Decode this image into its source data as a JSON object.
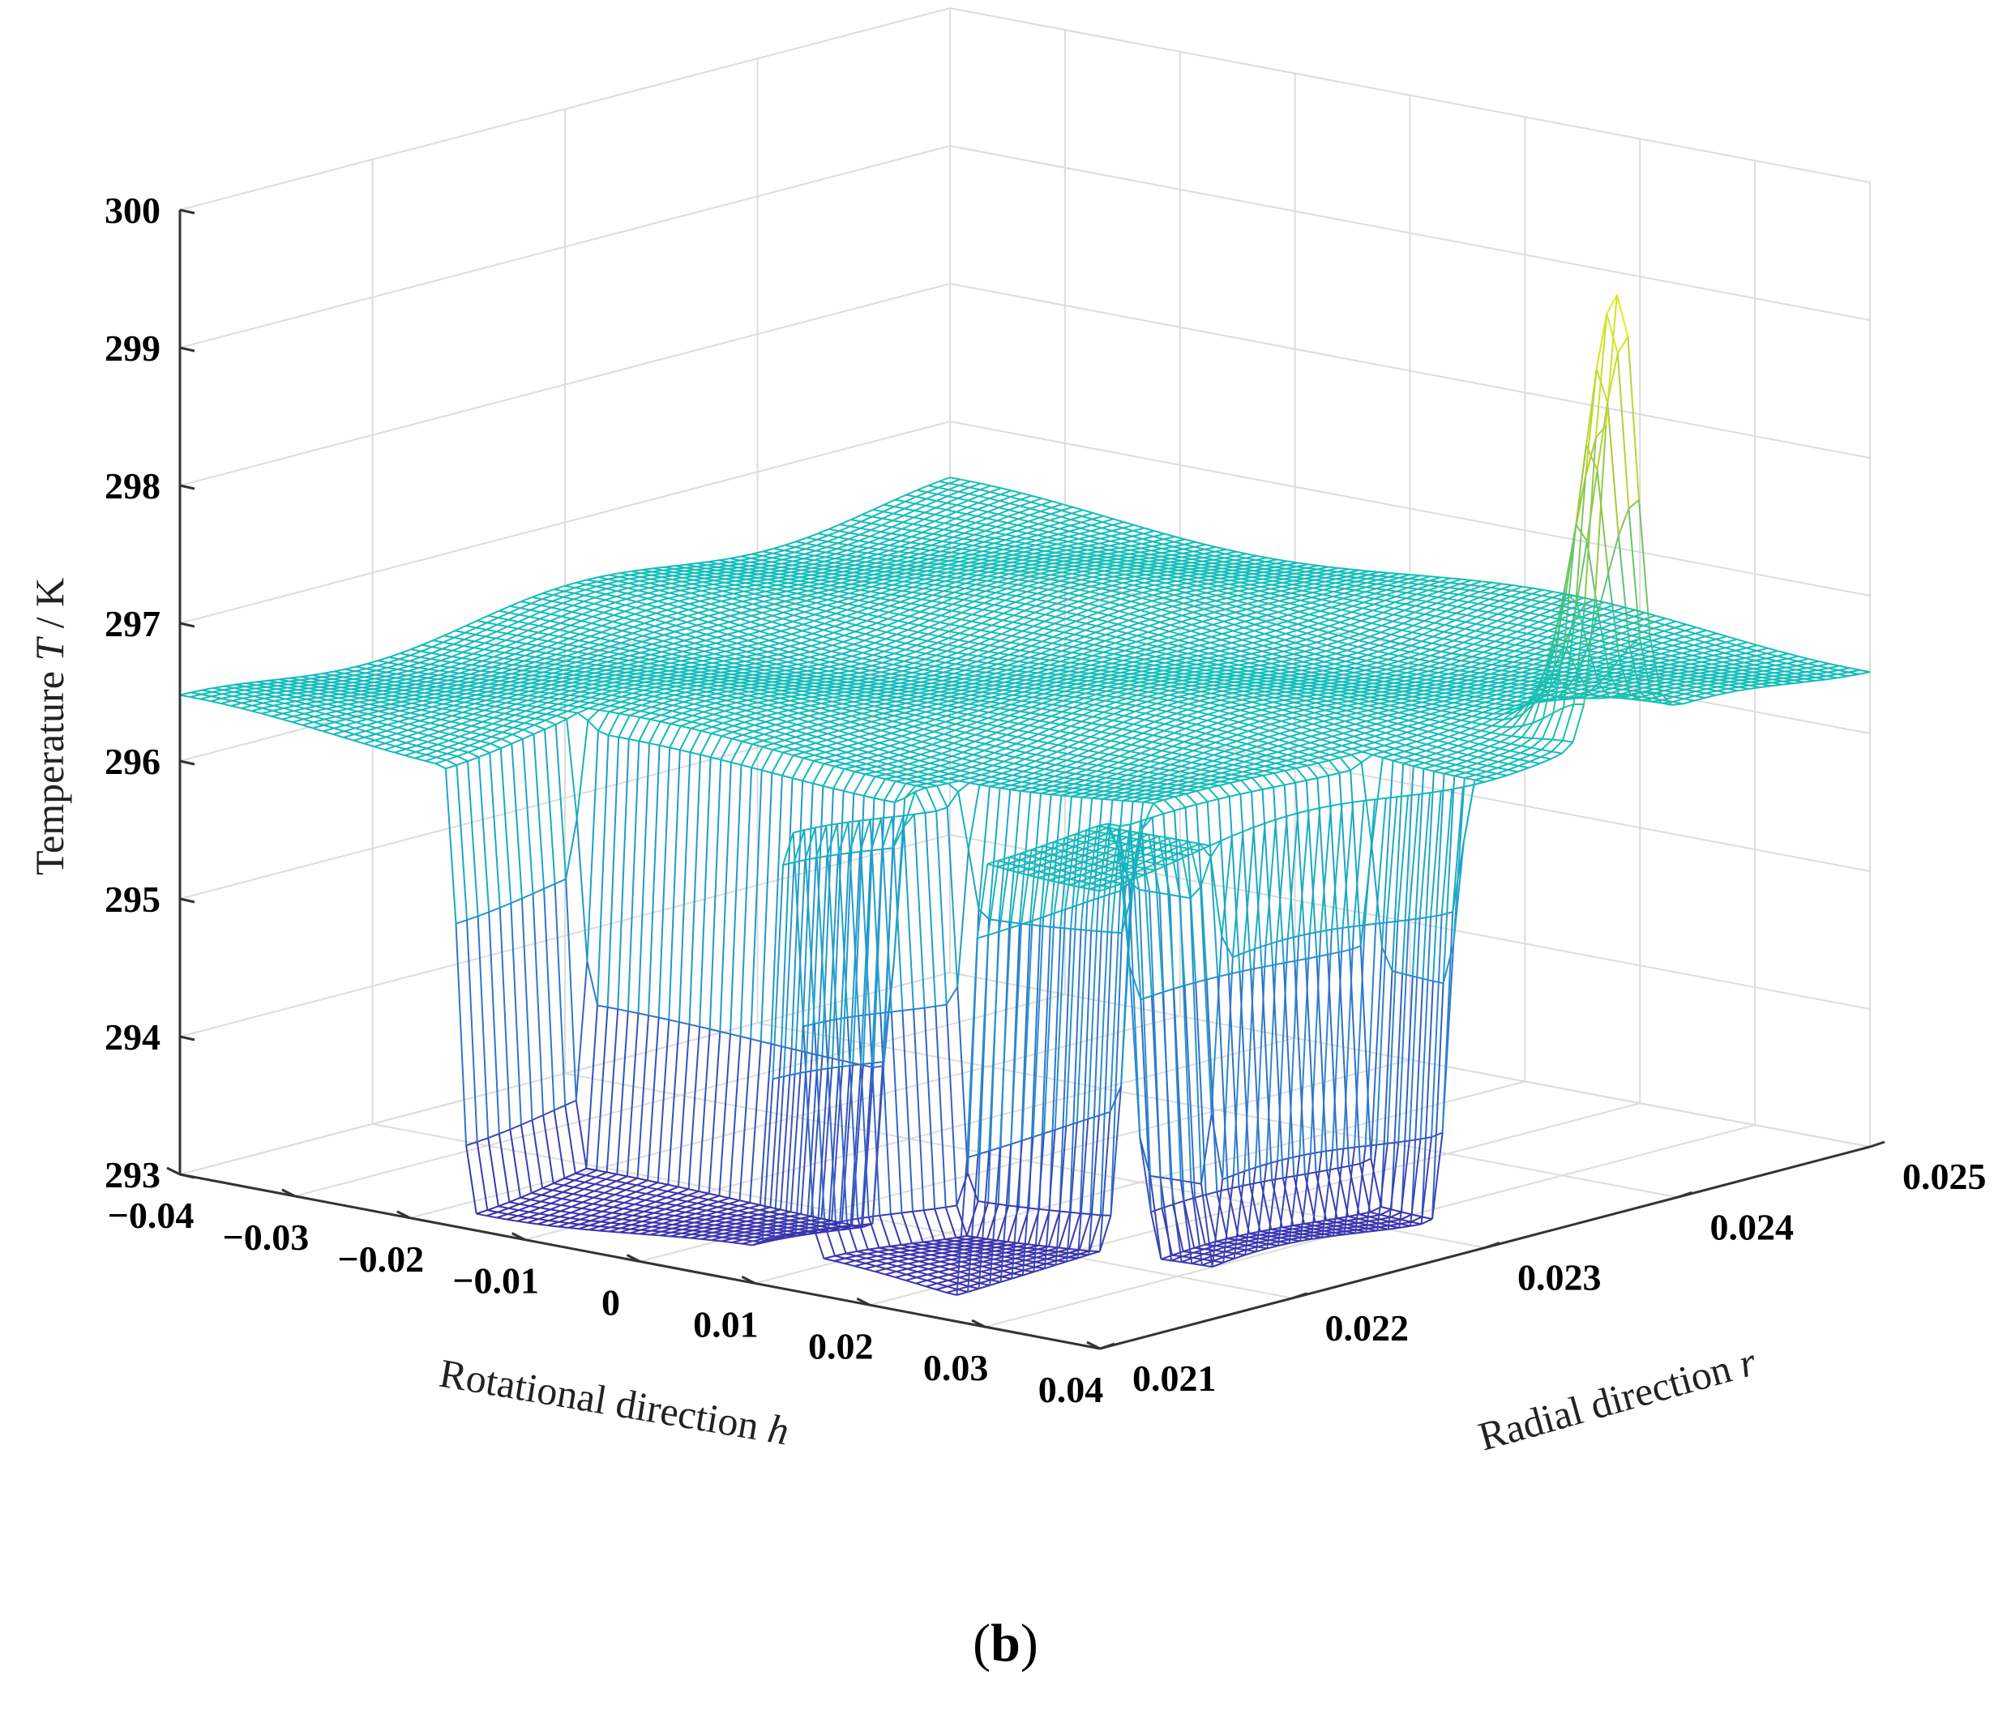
{
  "chart_data": {
    "type": "surface",
    "z_axis": {
      "label_text": "Temperature",
      "label_var": "T",
      "label_unit": "/ K",
      "range": [
        293,
        300
      ],
      "ticks": [
        "293",
        "294",
        "295",
        "296",
        "297",
        "298",
        "299",
        "300"
      ]
    },
    "x_axis": {
      "label_text": "Rotational direction",
      "label_var": "h",
      "range": [
        -0.04,
        0.04
      ],
      "ticks": [
        "−0.04",
        "−0.03",
        "−0.02",
        "−0.01",
        "0",
        "0.01",
        "0.02",
        "0.03",
        "0.04"
      ]
    },
    "y_axis": {
      "label_text": "Radial direction",
      "label_var": "r",
      "range": [
        0.021,
        0.025
      ],
      "ticks": [
        "0.021",
        "0.022",
        "0.023",
        "0.024",
        "0.025"
      ]
    },
    "grid": true,
    "colormap": "parula",
    "surface": {
      "baseline_T": 296.4,
      "dip_T": 293.2,
      "dip_regions": [
        {
          "h": [
            -0.017,
            0.013
          ],
          "r": [
            0.021,
            0.0217
          ]
        },
        {
          "h": [
            0.013,
            0.03
          ],
          "r": [
            0.0212,
            0.0219
          ]
        },
        {
          "h": [
            0.03,
            0.04
          ],
          "r": [
            0.022,
            0.023
          ]
        },
        {
          "h": [
            0.04,
            0.04
          ],
          "r": [
            0.023,
            0.0237
          ]
        }
      ],
      "peak": {
        "h": 0.04,
        "r": 0.0237,
        "T": 299.6
      }
    }
  },
  "caption": {
    "open": "(",
    "letter": "b",
    "close": ")"
  }
}
